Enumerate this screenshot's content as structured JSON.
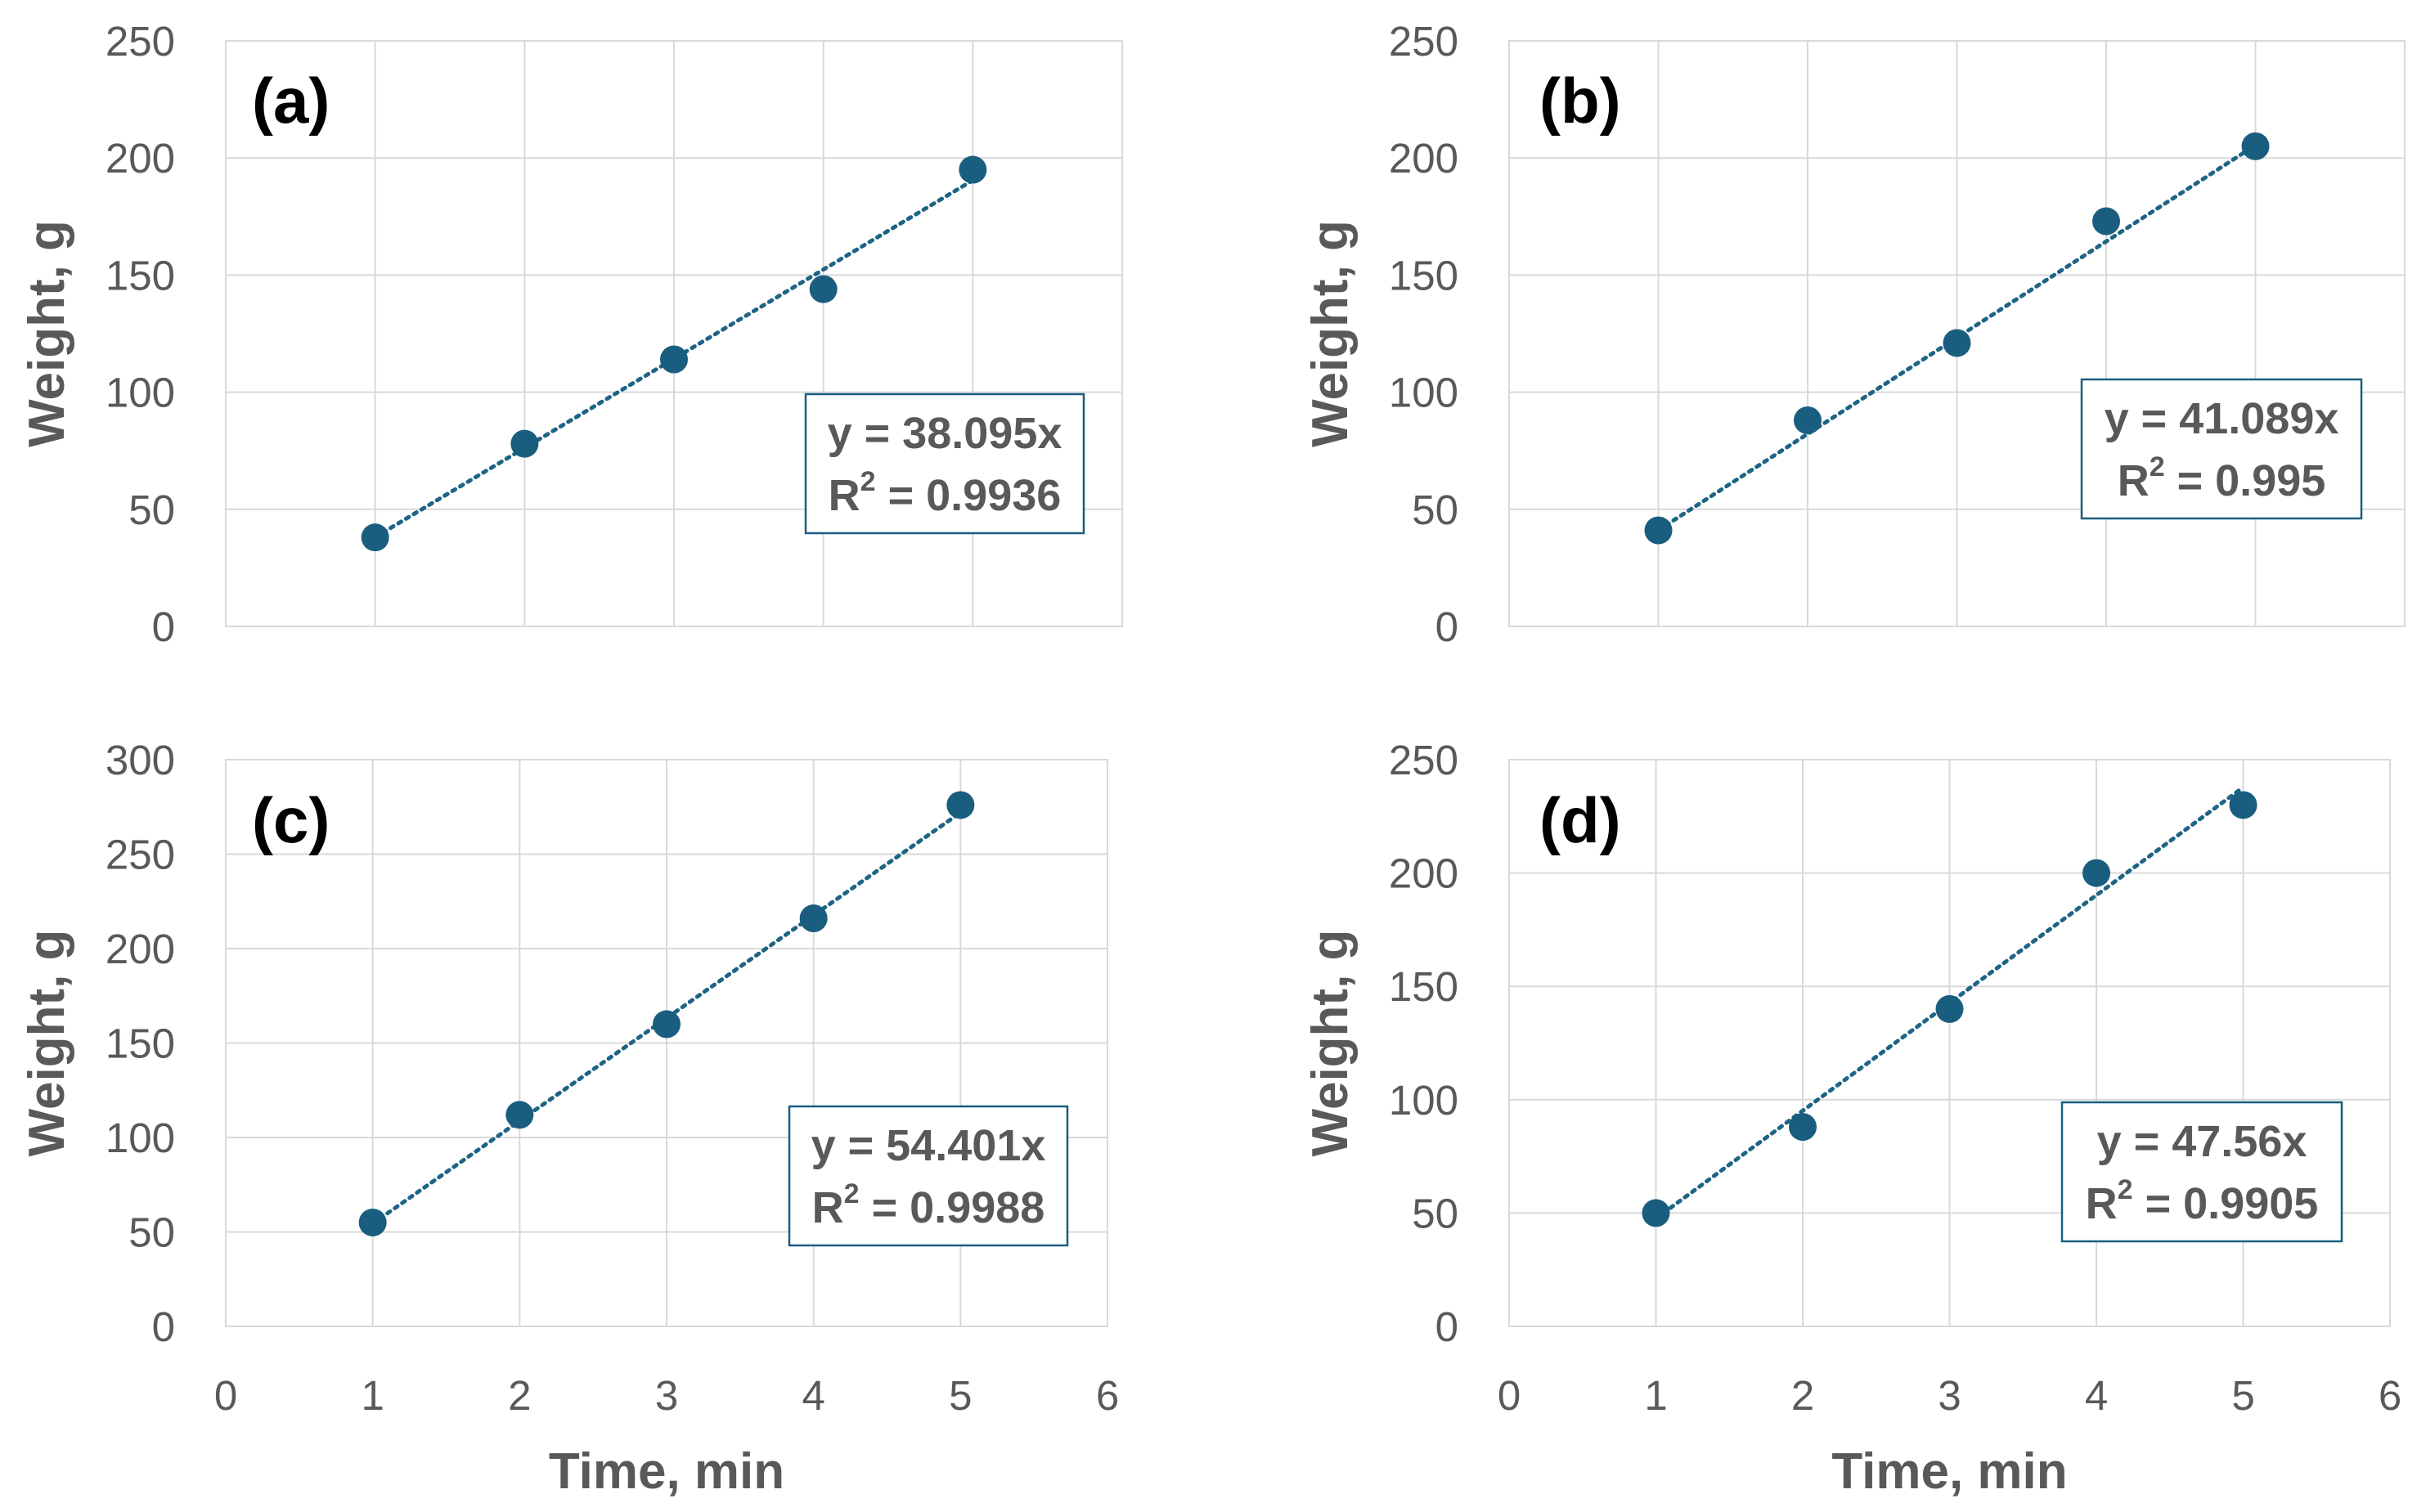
{
  "colors": {
    "marker": "#1a5e7f",
    "trendline": "#1e6485",
    "grid": "#d9d9d9",
    "text": "#595959"
  },
  "chart_data": [
    {
      "id": "a",
      "type": "scatter",
      "panel_label": "(a)",
      "xlabel": "",
      "ylabel": "Weight, g",
      "xlim": [
        0,
        6
      ],
      "ylim": [
        0,
        250
      ],
      "xticks": [
        0,
        1,
        2,
        3,
        4,
        5,
        6
      ],
      "yticks": [
        0,
        50,
        100,
        150,
        200,
        250
      ],
      "show_x_tick_labels": false,
      "grid": true,
      "series": [
        {
          "name": "Weight",
          "x": [
            1,
            2,
            3,
            4,
            5
          ],
          "y": [
            38,
            78,
            114,
            144,
            195
          ]
        }
      ],
      "trendline": {
        "type": "linear",
        "intercept": 0,
        "slope": 38.095,
        "x_range": [
          1,
          5
        ]
      },
      "equation": {
        "line1": "y = 38.095x",
        "r2_prefix": "R",
        "r2_sup": "2",
        "r2_value": " = 0.9936"
      },
      "equation_box_position": "center-right"
    },
    {
      "id": "b",
      "type": "scatter",
      "panel_label": "(b)",
      "xlabel": "",
      "ylabel": "Weight, g",
      "xlim": [
        0,
        6
      ],
      "ylim": [
        0,
        250
      ],
      "xticks": [
        0,
        1,
        2,
        3,
        4,
        5,
        6
      ],
      "yticks": [
        0,
        50,
        100,
        150,
        200,
        250
      ],
      "show_x_tick_labels": false,
      "grid": true,
      "series": [
        {
          "name": "Weight",
          "x": [
            1,
            2,
            3,
            4,
            5
          ],
          "y": [
            41,
            88,
            121,
            173,
            205
          ]
        }
      ],
      "trendline": {
        "type": "linear",
        "intercept": 0,
        "slope": 41.089,
        "x_range": [
          1,
          5
        ]
      },
      "equation": {
        "line1": "y = 41.089x",
        "r2_prefix": "R",
        "r2_sup": "2",
        "r2_value": " = 0.995"
      },
      "equation_box_position": "center-right"
    },
    {
      "id": "c",
      "type": "scatter",
      "panel_label": "(c)",
      "xlabel": "Time, min",
      "ylabel": "Weight, g",
      "xlim": [
        0,
        6
      ],
      "ylim": [
        0,
        300
      ],
      "xticks": [
        0,
        1,
        2,
        3,
        4,
        5,
        6
      ],
      "yticks": [
        0,
        50,
        100,
        150,
        200,
        250,
        300
      ],
      "show_x_tick_labels": true,
      "grid": true,
      "series": [
        {
          "name": "Weight",
          "x": [
            1,
            2,
            3,
            4,
            5
          ],
          "y": [
            55,
            112,
            160,
            216,
            276
          ]
        }
      ],
      "trendline": {
        "type": "linear",
        "intercept": 0,
        "slope": 54.401,
        "x_range": [
          1,
          5
        ]
      },
      "equation": {
        "line1": "y = 54.401x",
        "r2_prefix": "R",
        "r2_sup": "2",
        "r2_value": " = 0.9988"
      },
      "equation_box_position": "bottom-right"
    },
    {
      "id": "d",
      "type": "scatter",
      "panel_label": "(d)",
      "xlabel": "Time, min",
      "ylabel": "Weight, g",
      "xlim": [
        0,
        6
      ],
      "ylim": [
        0,
        250
      ],
      "xticks": [
        0,
        1,
        2,
        3,
        4,
        5,
        6
      ],
      "yticks": [
        0,
        50,
        100,
        150,
        200,
        250
      ],
      "show_x_tick_labels": true,
      "grid": true,
      "series": [
        {
          "name": "Weight",
          "x": [
            1,
            2,
            3,
            4,
            5
          ],
          "y": [
            50,
            88,
            140,
            200,
            230
          ]
        }
      ],
      "trendline": {
        "type": "linear",
        "intercept": 0,
        "slope": 47.56,
        "x_range": [
          1,
          5
        ]
      },
      "equation": {
        "line1": "y = 47.56x",
        "r2_prefix": "R",
        "r2_sup": "2",
        "r2_value": " = 0.9905"
      },
      "equation_box_position": "bottom-right"
    }
  ]
}
